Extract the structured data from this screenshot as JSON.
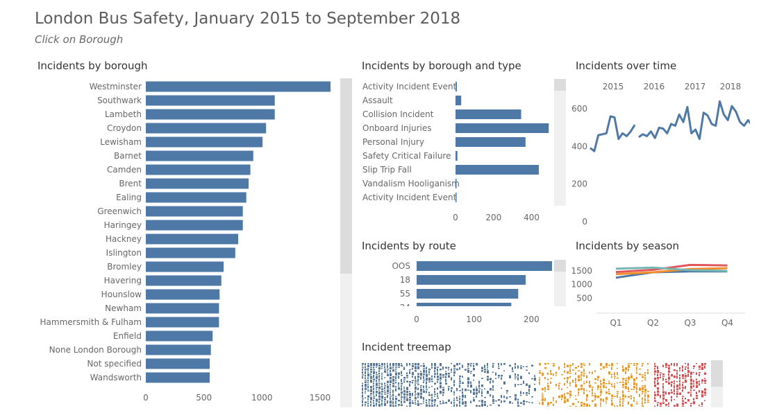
{
  "title": "London Bus Safety, January 2015 to September 2018",
  "subtitle": "Click on Borough",
  "colors": {
    "bar": "#4e79a7",
    "scroll_track": "#f0f0f0",
    "scroll_thumb": "#dcdcdc"
  },
  "borough": {
    "title": "Incidents by borough",
    "chart_data": {
      "type": "bar",
      "orientation": "horizontal",
      "categories": [
        "Westminster",
        "Southwark",
        "Lambeth",
        "Croydon",
        "Lewisham",
        "Barnet",
        "Camden",
        "Brent",
        "Ealing",
        "Greenwich",
        "Haringey",
        "Hackney",
        "Islington",
        "Bromley",
        "Havering",
        "Hounslow",
        "Newham",
        "Hammersmith & Fulham",
        "Enfield",
        "None London Borough",
        "Not specified",
        "Wandsworth"
      ],
      "values": [
        1590,
        1110,
        1110,
        1035,
        1005,
        925,
        900,
        885,
        865,
        835,
        835,
        795,
        770,
        670,
        650,
        635,
        630,
        630,
        575,
        560,
        550,
        550
      ],
      "xlim": [
        0,
        1700
      ],
      "xticks": [
        0,
        500,
        1000,
        1500
      ]
    }
  },
  "type": {
    "title": "Incidents by borough and type",
    "chart_data": {
      "type": "bar",
      "orientation": "horizontal",
      "categories": [
        "Activity Incident Event",
        "Assault",
        "Collision Incident",
        "Onboard Injuries",
        "Personal Injury",
        "Safety Critical Failure",
        "Slip Trip Fall",
        "Vandalism Hooliganism",
        "Activity Incident Event"
      ],
      "values": [
        7,
        30,
        345,
        490,
        368,
        10,
        438,
        2,
        4
      ],
      "xlim": [
        0,
        500
      ],
      "xticks": [
        0,
        200,
        400
      ]
    }
  },
  "time": {
    "title": "Incidents over time",
    "chart_data": {
      "type": "line",
      "year_labels": [
        "2015",
        "2016",
        "2017",
        "2018"
      ],
      "segments": [
        {
          "x": [
            0,
            1,
            2,
            3,
            4,
            5,
            6,
            7,
            8,
            9,
            10,
            11
          ],
          "values": [
            392,
            375,
            460,
            465,
            470,
            560,
            555,
            440,
            470,
            455,
            480,
            515
          ]
        },
        {
          "x": [
            12,
            13,
            14,
            15,
            16,
            17,
            18,
            19,
            20,
            21,
            22,
            23,
            24,
            25,
            26,
            27,
            28,
            29,
            30,
            31,
            32,
            33,
            34,
            35,
            36,
            37,
            38,
            39,
            40,
            41,
            42,
            43,
            44,
            45
          ],
          "values": [
            450,
            465,
            455,
            480,
            445,
            500,
            495,
            470,
            520,
            510,
            570,
            530,
            610,
            470,
            490,
            440,
            580,
            565,
            520,
            510,
            640,
            570,
            540,
            615,
            585,
            530,
            510,
            540,
            510,
            585,
            550,
            550,
            485,
            485
          ]
        }
      ],
      "ylim": [
        0,
        700
      ],
      "yticks": [
        0,
        200,
        400,
        600
      ]
    }
  },
  "route": {
    "title": "Incidents by route",
    "chart_data": {
      "type": "bar",
      "orientation": "horizontal",
      "categories": [
        "OOS",
        "18",
        "55",
        "24"
      ],
      "values": [
        325,
        190,
        177,
        165
      ],
      "xlim": [
        0,
        340
      ],
      "xticks": [
        0,
        100,
        200,
        300
      ]
    }
  },
  "season": {
    "title": "Incidents by season",
    "chart_data": {
      "type": "line",
      "categories": [
        "Q1",
        "Q2",
        "Q3",
        "Q4"
      ],
      "series": [
        {
          "color": "#4e79a7",
          "values": [
            1250,
            1450,
            1480,
            1480
          ]
        },
        {
          "color": "#f28e2b",
          "values": [
            1380,
            1450,
            1570,
            1600
          ]
        },
        {
          "color": "#e15759",
          "values": [
            1460,
            1540,
            1720,
            1700
          ]
        },
        {
          "color": "#76b7b2",
          "values": [
            1580,
            1620,
            1530,
            1500
          ]
        }
      ],
      "ylim": [
        0,
        2000
      ],
      "yticks": [
        500,
        1000,
        1500
      ]
    }
  },
  "treemap": {
    "title": "Incident treemap",
    "groups": [
      {
        "color": "#4e79a7",
        "share": 0.59
      },
      {
        "color": "#e19a38",
        "share": 0.36
      },
      {
        "color": "#c95456",
        "share": 0.15
      }
    ]
  }
}
